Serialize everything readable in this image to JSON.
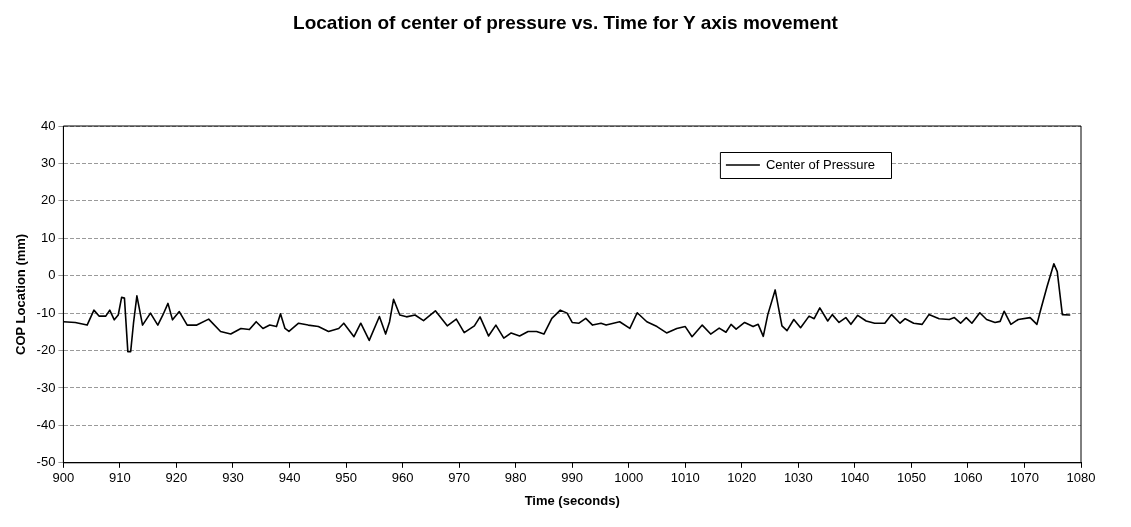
{
  "chart_data": {
    "type": "line",
    "title": "Location of center of pressure vs. Time for Y axis movement",
    "xlabel": "Time (seconds)",
    "ylabel": "COP Location (mm)",
    "xlim": [
      900,
      1080
    ],
    "xticks": [
      900,
      910,
      920,
      930,
      940,
      950,
      960,
      970,
      980,
      990,
      1000,
      1010,
      1020,
      1030,
      1040,
      1050,
      1060,
      1070,
      1080
    ],
    "ylim": [
      -50,
      40
    ],
    "yticks": [
      -50,
      -40,
      -30,
      -20,
      -10,
      0,
      10,
      20,
      30,
      40
    ],
    "grid": "y",
    "legend": "top right",
    "marker": "none",
    "line_style": "solid",
    "series": [
      {
        "name": "Center of Pressure",
        "color": "#000000",
        "x": [
          900,
          902.1,
          904.2,
          905.4,
          906.3,
          907.5,
          908.2,
          909,
          909.7,
          910.3,
          910.8,
          911.4,
          911.9,
          912.4,
          913,
          914,
          915.4,
          916.7,
          917.6,
          918.5,
          919.3,
          920.5,
          921.9,
          923.6,
          925.7,
          927.8,
          929.6,
          931.4,
          932.9,
          934.1,
          935.3,
          936.5,
          937.7,
          938.4,
          939.2,
          939.9,
          941.6,
          943.3,
          945.1,
          946.9,
          948.7,
          949.6,
          951.4,
          952.6,
          954.1,
          955.9,
          957,
          957.7,
          958.4,
          959.5,
          960.7,
          962.2,
          963.7,
          965.8,
          967.9,
          969.5,
          970.9,
          972.7,
          973.7,
          975.2,
          976.5,
          977.9,
          979.2,
          980.7,
          982.2,
          983.7,
          985,
          986.4,
          987.9,
          989.1,
          990,
          991.2,
          992.4,
          993.6,
          995.1,
          996,
          998.4,
          1000.2,
          1001.5,
          1003.2,
          1005,
          1006.7,
          1008.5,
          1010,
          1011.2,
          1013,
          1014.5,
          1016,
          1017.2,
          1018.1,
          1019,
          1020.5,
          1022,
          1022.9,
          1023.8,
          1024.6,
          1025.9,
          1027.1,
          1028,
          1029.2,
          1030.4,
          1031.9,
          1032.8,
          1033.8,
          1035.2,
          1036,
          1037.2,
          1038.4,
          1039.3,
          1040.5,
          1042,
          1043.5,
          1045.3,
          1046.5,
          1048,
          1048.9,
          1050.4,
          1051.9,
          1053.1,
          1054.9,
          1056.7,
          1057.6,
          1058.7,
          1059.7,
          1060.7,
          1062.1,
          1063.3,
          1064.8,
          1065.7,
          1066.4,
          1067.6,
          1068.9,
          1071,
          1072.2,
          1072.8,
          1074,
          1075.2,
          1075.8,
          1076.7,
          1078
        ],
        "values": [
          -12.3,
          -12.5,
          -13.2,
          -9.2,
          -10.8,
          -10.8,
          -9.2,
          -11.8,
          -10.5,
          -5.8,
          -6,
          -20.3,
          -20.3,
          -12.7,
          -5.4,
          -13.2,
          -10,
          -13.2,
          -10.5,
          -7.4,
          -11.8,
          -9.6,
          -13.2,
          -13.2,
          -11.6,
          -14.9,
          -15.6,
          -14.1,
          -14.4,
          -12.3,
          -14.1,
          -13.2,
          -13.6,
          -10.2,
          -14.1,
          -14.9,
          -12.7,
          -13.2,
          -13.6,
          -14.9,
          -14.1,
          -12.7,
          -16.3,
          -12.7,
          -17.3,
          -10.9,
          -15.6,
          -12.3,
          -6.3,
          -10.5,
          -11,
          -10.5,
          -12,
          -9.4,
          -13.4,
          -11.6,
          -15.2,
          -13.4,
          -11,
          -16.1,
          -13.2,
          -16.7,
          -15.3,
          -16.1,
          -14.9,
          -14.9,
          -15.6,
          -11.4,
          -9.2,
          -10,
          -12.5,
          -12.7,
          -11.4,
          -13.2,
          -12.7,
          -13.2,
          -12.3,
          -14.1,
          -9.9,
          -12.3,
          -13.6,
          -15.3,
          -14.1,
          -13.6,
          -16.3,
          -13.2,
          -15.6,
          -14,
          -15.1,
          -13,
          -14.3,
          -12.5,
          -13.6,
          -13,
          -16.2,
          -10.4,
          -3.8,
          -13.4,
          -14.7,
          -11.7,
          -13.9,
          -10.8,
          -11.5,
          -8.6,
          -12.1,
          -10.4,
          -12.5,
          -11.2,
          -13,
          -10.6,
          -12.1,
          -12.7,
          -12.7,
          -10.4,
          -12.7,
          -11.5,
          -12.7,
          -13,
          -10.4,
          -11.5,
          -11.7,
          -11.2,
          -12.7,
          -11.2,
          -12.7,
          -9.9,
          -11.7,
          -12.5,
          -12.2,
          -9.5,
          -13,
          -11.7,
          -11.2,
          -13,
          -9.5,
          -2.9,
          3.2,
          1.1,
          -10.4,
          -10.5
        ]
      }
    ]
  }
}
